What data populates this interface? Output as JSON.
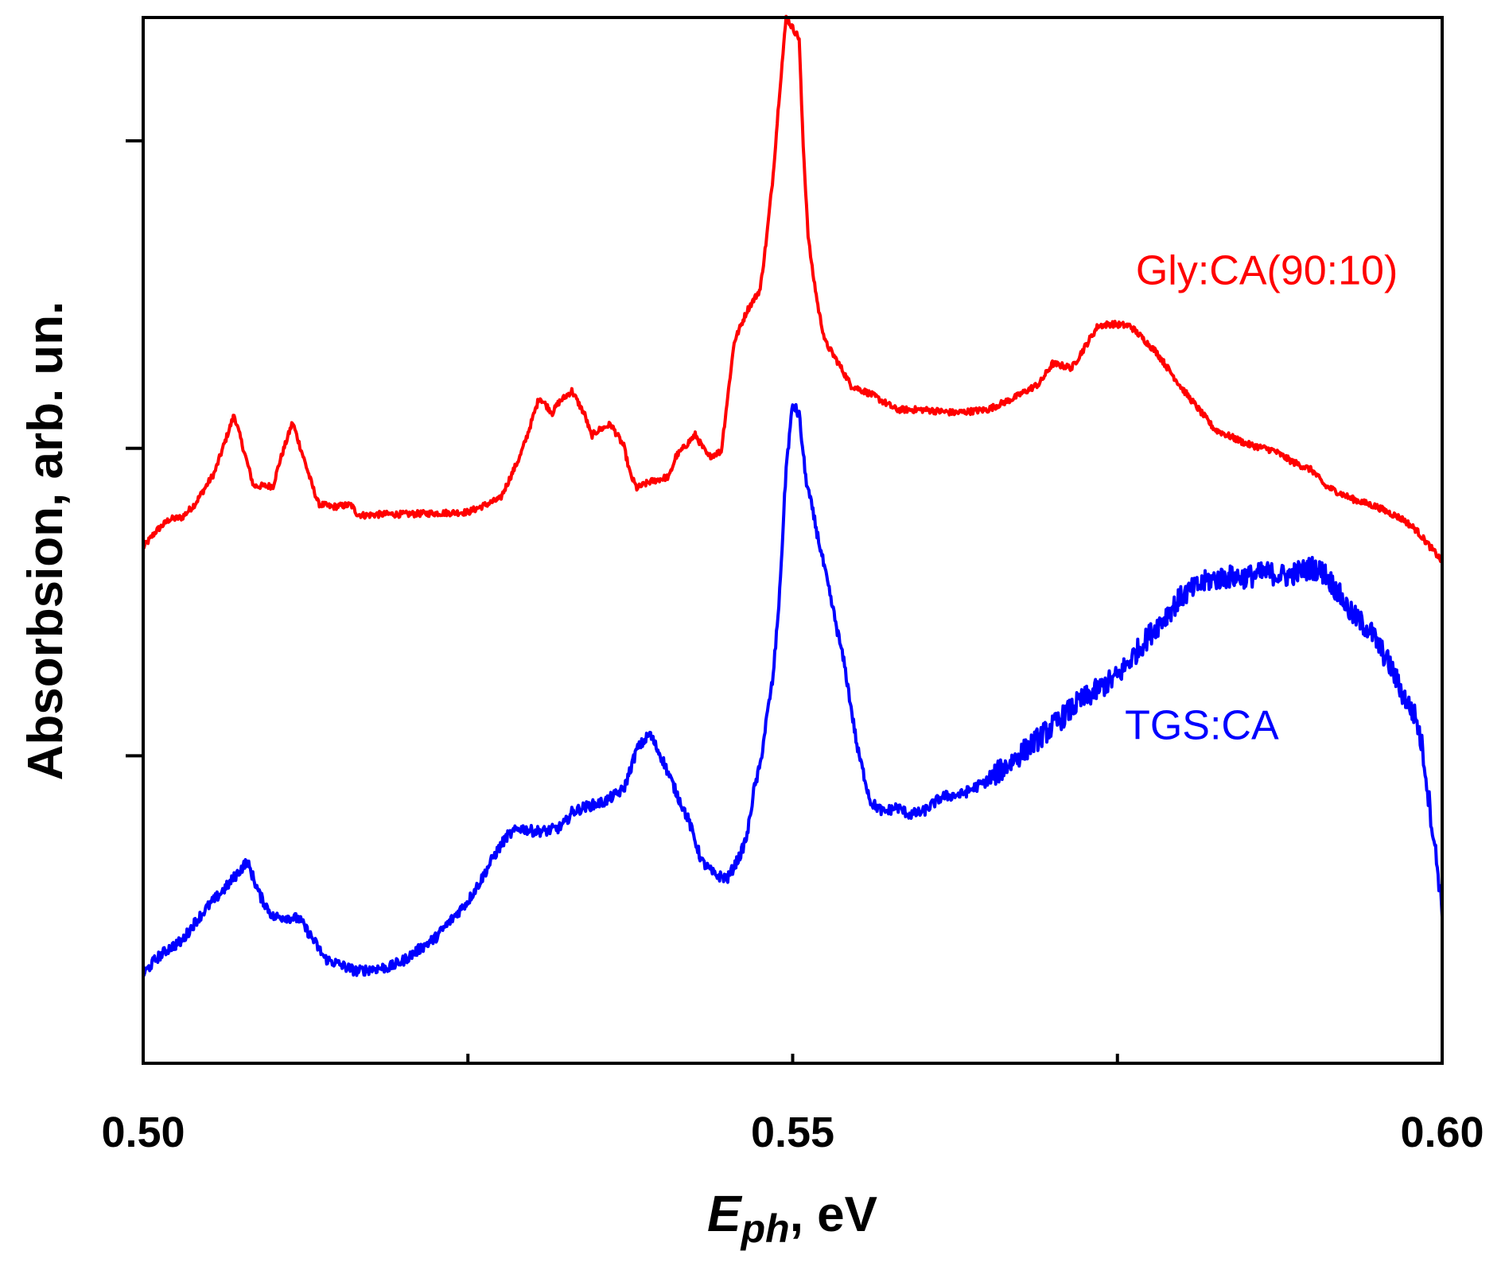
{
  "chart_data": {
    "type": "line",
    "title": "",
    "xlabel_symbol": "E",
    "xlabel_subscript": "ph",
    "xlabel_unit": ", eV",
    "ylabel": "Absorbsion, arb. un.",
    "xlim": [
      0.5,
      0.6
    ],
    "ylim": [
      0,
      1
    ],
    "x_ticks": [
      0.5,
      0.525,
      0.55,
      0.575,
      0.6
    ],
    "x_tick_labels": [
      "0.50",
      "",
      "0.55",
      "",
      "0.60"
    ],
    "y_ticks": [
      0.294,
      0.588,
      0.882
    ],
    "y_tick_labels": [
      "",
      "",
      ""
    ],
    "grid": false,
    "series": [
      {
        "name": "Gly:CA(90:10)",
        "color": "#ff0000",
        "label_x": 0.5865,
        "label_y": 0.745,
        "noise": 0.003,
        "x": [
          0.5,
          0.501,
          0.502,
          0.503,
          0.504,
          0.5055,
          0.507,
          0.5085,
          0.51,
          0.5105,
          0.5115,
          0.513,
          0.5135,
          0.5145,
          0.516,
          0.5165,
          0.517,
          0.5185,
          0.52,
          0.525,
          0.5275,
          0.529,
          0.5295,
          0.5305,
          0.5315,
          0.532,
          0.533,
          0.534,
          0.5345,
          0.535,
          0.536,
          0.537,
          0.5375,
          0.538,
          0.539,
          0.5405,
          0.541,
          0.5425,
          0.5435,
          0.5445,
          0.5455,
          0.5465,
          0.5475,
          0.548,
          0.5485,
          0.549,
          0.5495,
          0.5505,
          0.5508,
          0.5512,
          0.5515,
          0.552,
          0.5525,
          0.5535,
          0.5545,
          0.556,
          0.558,
          0.56,
          0.5625,
          0.565,
          0.567,
          0.569,
          0.57,
          0.5715,
          0.5725,
          0.5735,
          0.5745,
          0.576,
          0.578,
          0.58,
          0.5825,
          0.585,
          0.587,
          0.5885,
          0.59,
          0.591,
          0.593,
          0.595,
          0.597,
          0.598,
          0.6
        ],
        "y": [
          0.493,
          0.509,
          0.52,
          0.522,
          0.535,
          0.565,
          0.62,
          0.552,
          0.552,
          0.575,
          0.613,
          0.553,
          0.535,
          0.532,
          0.534,
          0.525,
          0.524,
          0.525,
          0.525,
          0.527,
          0.54,
          0.58,
          0.598,
          0.637,
          0.622,
          0.632,
          0.643,
          0.62,
          0.6,
          0.605,
          0.611,
          0.59,
          0.563,
          0.55,
          0.556,
          0.561,
          0.58,
          0.601,
          0.58,
          0.585,
          0.69,
          0.72,
          0.74,
          0.79,
          0.85,
          0.93,
          1.0,
          0.98,
          0.88,
          0.79,
          0.76,
          0.72,
          0.69,
          0.67,
          0.648,
          0.64,
          0.625,
          0.625,
          0.622,
          0.625,
          0.636,
          0.65,
          0.669,
          0.665,
          0.685,
          0.705,
          0.707,
          0.705,
          0.68,
          0.645,
          0.606,
          0.592,
          0.586,
          0.575,
          0.567,
          0.552,
          0.54,
          0.532,
          0.52,
          0.51,
          0.48
        ]
      },
      {
        "name": "TGS:CA",
        "color": "#0000ff",
        "label_x": 0.5815,
        "label_y": 0.31,
        "noise": 0.005,
        "x": [
          0.5,
          0.501,
          0.502,
          0.503,
          0.504,
          0.505,
          0.5065,
          0.508,
          0.509,
          0.51,
          0.511,
          0.512,
          0.513,
          0.5135,
          0.514,
          0.515,
          0.516,
          0.5165,
          0.5175,
          0.519,
          0.52,
          0.5225,
          0.525,
          0.526,
          0.527,
          0.528,
          0.529,
          0.53,
          0.531,
          0.532,
          0.5325,
          0.533,
          0.534,
          0.5355,
          0.537,
          0.538,
          0.539,
          0.54,
          0.541,
          0.542,
          0.543,
          0.544,
          0.545,
          0.546,
          0.5465,
          0.547,
          0.5475,
          0.548,
          0.5485,
          0.549,
          0.5495,
          0.55,
          0.5505,
          0.551,
          0.552,
          0.553,
          0.554,
          0.555,
          0.556,
          0.557,
          0.558,
          0.559,
          0.56,
          0.5615,
          0.563,
          0.565,
          0.567,
          0.57,
          0.572,
          0.575,
          0.5775,
          0.58,
          0.582,
          0.5835,
          0.585,
          0.5865,
          0.588,
          0.589,
          0.59,
          0.591,
          0.592,
          0.593,
          0.5945,
          0.596,
          0.597,
          0.598,
          0.5985,
          0.599,
          0.5995,
          0.6
        ],
        "y": [
          0.085,
          0.1,
          0.11,
          0.117,
          0.135,
          0.15,
          0.17,
          0.193,
          0.16,
          0.14,
          0.14,
          0.138,
          0.12,
          0.11,
          0.1,
          0.095,
          0.09,
          0.088,
          0.09,
          0.092,
          0.098,
          0.12,
          0.155,
          0.175,
          0.198,
          0.217,
          0.225,
          0.222,
          0.222,
          0.225,
          0.23,
          0.24,
          0.245,
          0.25,
          0.262,
          0.3,
          0.315,
          0.29,
          0.26,
          0.232,
          0.193,
          0.18,
          0.177,
          0.2,
          0.218,
          0.26,
          0.285,
          0.33,
          0.37,
          0.45,
          0.57,
          0.63,
          0.62,
          0.56,
          0.5,
          0.44,
          0.38,
          0.3,
          0.25,
          0.24,
          0.245,
          0.238,
          0.24,
          0.255,
          0.257,
          0.27,
          0.29,
          0.322,
          0.345,
          0.37,
          0.41,
          0.447,
          0.462,
          0.465,
          0.465,
          0.469,
          0.466,
          0.47,
          0.474,
          0.468,
          0.45,
          0.43,
          0.413,
          0.38,
          0.352,
          0.33,
          0.3,
          0.25,
          0.2,
          0.15
        ]
      }
    ]
  }
}
